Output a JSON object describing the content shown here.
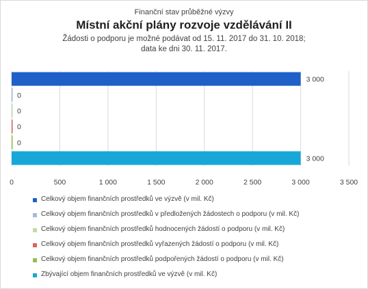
{
  "header": {
    "subtitle": "Finanční stav průběžné výzvy",
    "title": "Místní akční plány rozvoje vzdělávání II",
    "note_line1": "Žádosti o podporu je možné podávat od 15. 11. 2017 do 31. 10. 2018;",
    "note_line2": "data ke dni 30. 11. 2017."
  },
  "chart_data": {
    "type": "bar",
    "orientation": "horizontal",
    "title": "Místní akční plány rozvoje vzdělávání II",
    "xlim": [
      0,
      3500
    ],
    "x_ticks": [
      "0",
      "500",
      "1 000",
      "1 500",
      "2 000",
      "2 500",
      "3 000",
      "3 500"
    ],
    "grid": true,
    "legend_position": "bottom",
    "series": [
      {
        "name": "Celkový objem finančních prostředků ve výzvě (v mil. Kč)",
        "value": 3000,
        "label": "3 000",
        "color": "#1f5fc8"
      },
      {
        "name": "Celkový objem finančních prostředků v předložených žádostech o podporu (v mil. Kč)",
        "value": 0,
        "label": "0",
        "color": "#a7b8d6"
      },
      {
        "name": "Celkový objem finančních prostředků hodnocených žádostí o podporu (v mil. Kč)",
        "value": 0,
        "label": "0",
        "color": "#c5d9a8"
      },
      {
        "name": "Celkový objem finančních prostředků vyřazených žádostí o podporu (v mil. Kč)",
        "value": 0,
        "label": "0",
        "color": "#e06060"
      },
      {
        "name": "Celkový objem finančních prostředků podpořených žádostí o podporu (v mil. Kč)",
        "value": 0,
        "label": "0",
        "color": "#92c050"
      },
      {
        "name": "Zbývající objem finančních prostředků ve výzvě (v mil. Kč)",
        "value": 3000,
        "label": "3 000",
        "color": "#17a8d8"
      }
    ]
  }
}
